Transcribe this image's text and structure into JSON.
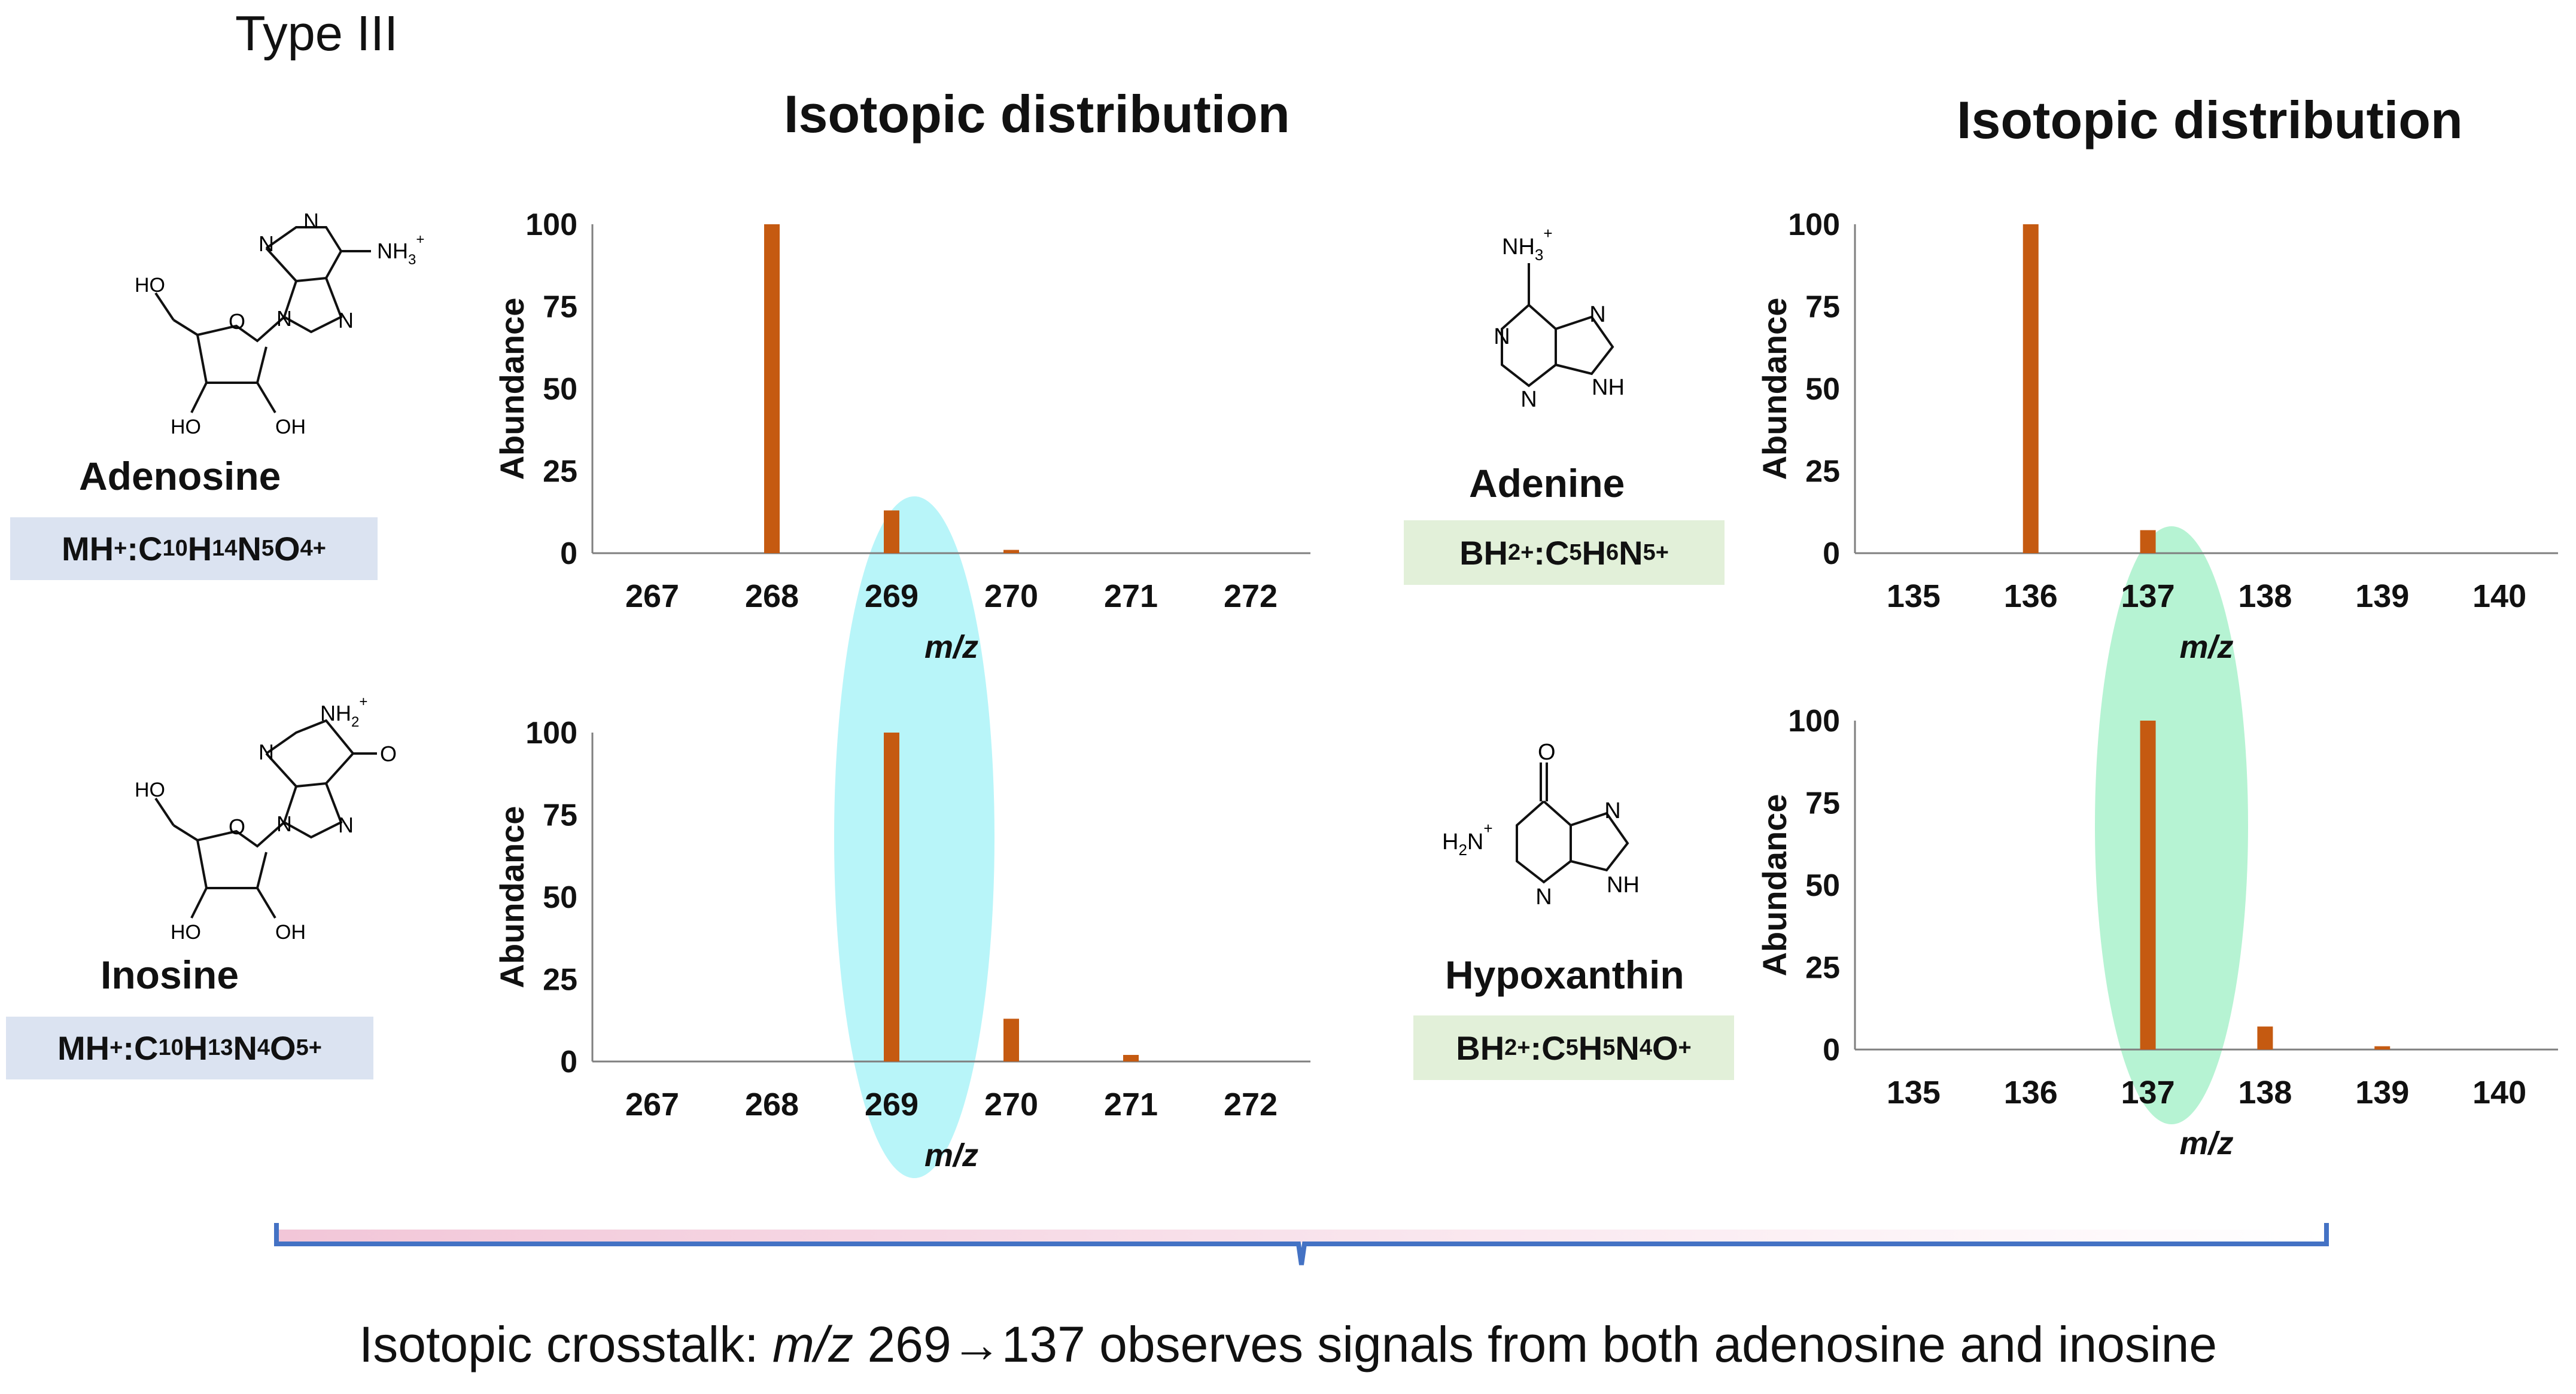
{
  "header": {
    "type_label": "Type III"
  },
  "columns": [
    {
      "title": "Isotopic distribution"
    },
    {
      "title": "Isotopic distribution"
    }
  ],
  "molecules": [
    {
      "name": "Adenosine",
      "ion": "MH",
      "ion_sup": "+",
      "formula_sep": " : ",
      "formula_parts": [
        [
          "C",
          "10"
        ],
        [
          "H",
          "14"
        ],
        [
          "N",
          "5"
        ],
        [
          "O",
          "4"
        ]
      ],
      "formula_charge": "+",
      "structure_labels": {
        "ammonium": "NH",
        "ammonium_sub": "3",
        "ammonium_sup": "+",
        "n1": "N",
        "n2": "N",
        "n3": "N",
        "n4": "N",
        "ho_top": "HO",
        "ho_bottom": "HO",
        "oh_bottom": "OH",
        "ring_o": "O"
      }
    },
    {
      "name": "Inosine",
      "ion": "MH",
      "ion_sup": "+",
      "formula_sep": " : ",
      "formula_parts": [
        [
          "C",
          "10"
        ],
        [
          "H",
          "13"
        ],
        [
          "N",
          "4"
        ],
        [
          "O",
          "5"
        ]
      ],
      "formula_charge": "+",
      "structure_labels": {
        "ammonium": "NH",
        "ammonium_sub": "2",
        "ammonium_sup": "+",
        "n1": "N",
        "n2": "N",
        "n3": "N",
        "carbonyl": "O",
        "ho_top": "HO",
        "ho_bottom": "HO",
        "oh_bottom": "OH",
        "ring_o": "O"
      }
    },
    {
      "name": "Adenine",
      "ion": "BH",
      "ion_sub": "2",
      "ion_sup": "+",
      "formula_sep": " : ",
      "formula_parts": [
        [
          "C",
          "5"
        ],
        [
          "H",
          "6"
        ],
        [
          "N",
          "5"
        ]
      ],
      "formula_charge": "+",
      "structure_labels": {
        "ammonium": "NH",
        "ammonium_sub": "3",
        "ammonium_sup": "+",
        "n1": "N",
        "n2": "N",
        "n3": "N",
        "nh": "NH"
      }
    },
    {
      "name": "Hypoxanthin",
      "ion": "BH",
      "ion_sub": "2",
      "ion_sup": "+",
      "formula_sep": " : ",
      "formula_parts": [
        [
          "C",
          "5"
        ],
        [
          "H",
          "5"
        ],
        [
          "N",
          "4"
        ],
        [
          "O",
          ""
        ]
      ],
      "formula_charge": "+",
      "structure_labels": {
        "h2n": "H",
        "h2n_sub": "2",
        "h2n_n": "N",
        "h2n_sup": "+",
        "n2": "N",
        "n3": "N",
        "nh": "NH",
        "carbonyl": "O"
      }
    }
  ],
  "chart_data": [
    {
      "type": "bar",
      "title": "",
      "xlabel": "m/z",
      "ylabel": "Abundance",
      "categories": [
        "267",
        "268",
        "269",
        "270",
        "271",
        "272"
      ],
      "series": [
        {
          "values": [
            0,
            100,
            13,
            1,
            0,
            0
          ]
        }
      ],
      "ylim": [
        0,
        100
      ],
      "yticks": [
        0,
        25,
        50,
        75,
        100
      ],
      "grid": false,
      "highlight_category": "269"
    },
    {
      "type": "bar",
      "title": "",
      "xlabel": "m/z",
      "ylabel": "Abundance",
      "categories": [
        "267",
        "268",
        "269",
        "270",
        "271",
        "272"
      ],
      "series": [
        {
          "values": [
            0,
            0,
            100,
            13,
            2,
            0
          ]
        }
      ],
      "ylim": [
        0,
        100
      ],
      "yticks": [
        0,
        25,
        50,
        75,
        100
      ],
      "grid": false,
      "highlight_category": "269"
    },
    {
      "type": "bar",
      "title": "",
      "xlabel": "m/z",
      "ylabel": "Abundance",
      "categories": [
        "135",
        "136",
        "137",
        "138",
        "139",
        "140"
      ],
      "series": [
        {
          "values": [
            0,
            100,
            7,
            0,
            0,
            0
          ]
        }
      ],
      "ylim": [
        0,
        100
      ],
      "yticks": [
        0,
        25,
        50,
        75,
        100
      ],
      "grid": false,
      "highlight_category": "137"
    },
    {
      "type": "bar",
      "title": "",
      "xlabel": "m/z",
      "ylabel": "Abundance",
      "categories": [
        "135",
        "136",
        "137",
        "138",
        "139",
        "140"
      ],
      "series": [
        {
          "values": [
            0,
            0,
            100,
            7,
            1,
            0
          ]
        }
      ],
      "ylim": [
        0,
        100
      ],
      "yticks": [
        0,
        25,
        50,
        75,
        100
      ],
      "grid": false,
      "highlight_category": "137"
    }
  ],
  "colors": {
    "bar": "#C55A11",
    "axis": "#7f7f7f",
    "highlight_left": "#b8f5f9",
    "highlight_right": "#b6f3d3",
    "box_blue": "#dbe3f1",
    "box_green": "#e2f0d9",
    "brace": "#4472c4",
    "brace_fill": "#f2c6d8"
  },
  "footer": {
    "prefix": "Isotopic crosstalk: ",
    "mz": "m/z",
    "suffix": " 269→137 observes signals from both adenosine and inosine"
  }
}
